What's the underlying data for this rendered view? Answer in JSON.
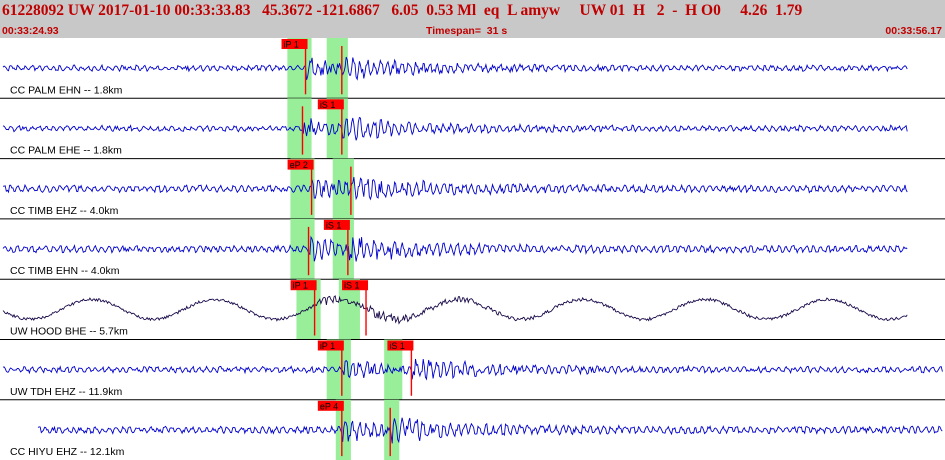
{
  "header": {
    "title": "61228092 UW 2017-01-10 00:33:33.83   45.3672 -121.6867   6.05  0.53 Ml  eq  L amyw     UW 01  H   2  -  H O0     4.26  1.79",
    "start_time": "00:33:24.93",
    "timespan": "Timespan=  31 s",
    "end_time": "00:33:56.17"
  },
  "colors": {
    "header_bg": "#c8c8c8",
    "header_text": "#c00000",
    "trace": "#0000cc",
    "trace_alt": "#1a0a4a",
    "pick": "#ff0000",
    "window": "#99ee99",
    "separator": "#000000"
  },
  "traces": [
    {
      "label": "CC PALM EHN -- 1.8km",
      "color": "trace",
      "amp": 0.55,
      "picks": [
        {
          "label": "iP 1",
          "t": 10.1,
          "w_start": 9.5,
          "w_end": 10.3,
          "marker": "P"
        },
        {
          "label": "",
          "t": 11.3,
          "w_start": 10.8,
          "w_end": 11.5,
          "marker": "S"
        }
      ]
    },
    {
      "label": "CC PALM EHE -- 1.8km",
      "color": "trace",
      "amp": 0.55,
      "picks": [
        {
          "label": "",
          "t": 10.0,
          "w_start": 9.5,
          "w_end": 10.3,
          "marker": "P"
        },
        {
          "label": "iS 1",
          "t": 11.3,
          "w_start": 10.8,
          "w_end": 11.5,
          "marker": "S"
        }
      ]
    },
    {
      "label": "CC TIMB EHZ -- 4.0km",
      "color": "trace",
      "amp": 0.7,
      "picks": [
        {
          "label": "eP 2",
          "t": 10.3,
          "w_start": 9.6,
          "w_end": 10.4,
          "marker": "P"
        },
        {
          "label": "",
          "t": 11.6,
          "w_start": 11.0,
          "w_end": 11.7,
          "marker": "S"
        }
      ]
    },
    {
      "label": "CC TIMB EHN -- 4.0km",
      "color": "trace",
      "amp": 0.7,
      "picks": [
        {
          "label": "",
          "t": 10.2,
          "w_start": 9.6,
          "w_end": 10.4,
          "marker": "P"
        },
        {
          "label": "iS 1",
          "t": 11.5,
          "w_start": 11.0,
          "w_end": 11.7,
          "marker": "S"
        }
      ]
    },
    {
      "label": "UW HOOD BHE -- 5.7km",
      "color": "trace_alt",
      "amp": 0.75,
      "picks": [
        {
          "label": "iP 1",
          "t": 10.4,
          "w_start": 9.8,
          "w_end": 10.6,
          "marker": "P"
        },
        {
          "label": "iS 1",
          "t": 12.1,
          "w_start": 11.2,
          "w_end": 11.9,
          "marker": "S"
        }
      ]
    },
    {
      "label": "UW TDH EHZ -- 11.9km",
      "color": "trace",
      "amp": 0.6,
      "picks": [
        {
          "label": "iP 1",
          "t": 11.3,
          "w_start": 10.8,
          "w_end": 11.6,
          "marker": "P"
        },
        {
          "label": "iS 1",
          "t": 13.6,
          "w_start": 12.7,
          "w_end": 13.3,
          "marker": "S"
        }
      ]
    },
    {
      "label": "CC HIYU EHZ -- 12.1km",
      "color": "trace",
      "amp": 0.7,
      "picks": [
        {
          "label": "eP 4",
          "t": 11.3,
          "w_start": 11.1,
          "w_end": 11.6,
          "marker": "P"
        },
        {
          "label": "",
          "t": 12.9,
          "w_start": 12.7,
          "w_end": 13.2,
          "marker": "S"
        }
      ]
    }
  ]
}
